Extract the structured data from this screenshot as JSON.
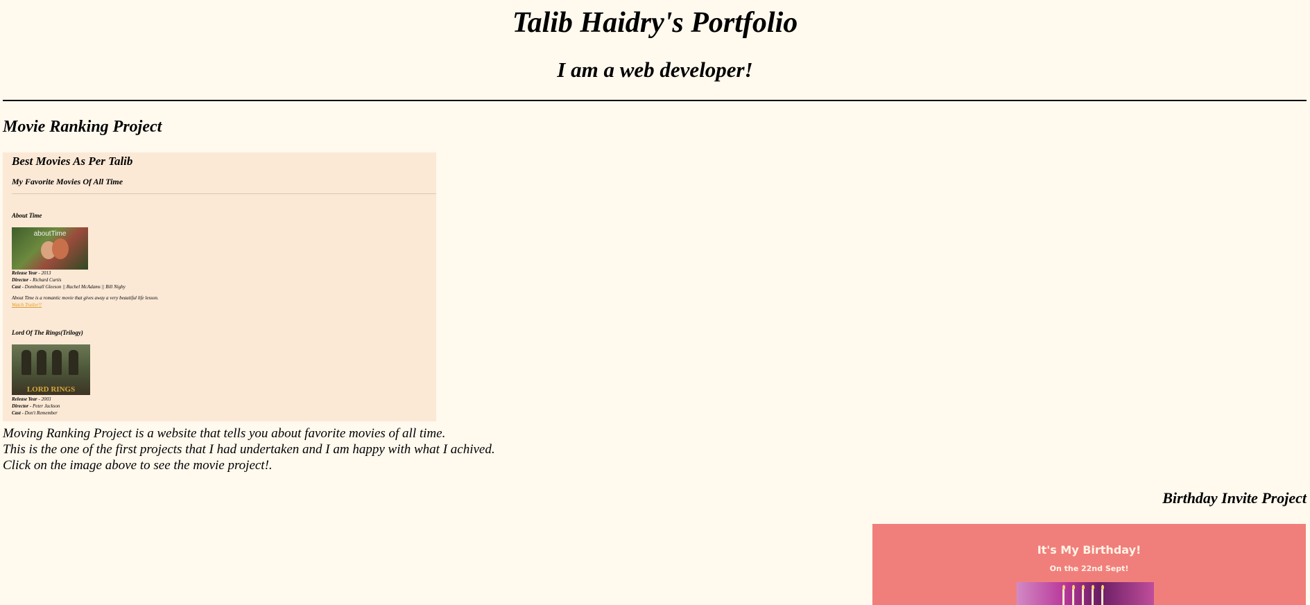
{
  "header": {
    "title": "Talib Haidry's Portfolio",
    "subtitle": "I am a web developer!"
  },
  "movie_project": {
    "heading": "Movie Ranking Project",
    "preview": {
      "title": "Best Movies As Per Talib",
      "subtitle": "My Favorite Movies Of All Time",
      "movies": [
        {
          "name": "About Time",
          "poster_text": "aboutTime",
          "release_label": "Release Year",
          "release_value": " - 2013",
          "director_label": "Director",
          "director_value": " - Richard Curtis",
          "cast_label": "Cast",
          "cast_value": " - Domhnall Gleeson || Rachel McAdams || Bill Nighy",
          "description": "About Time is a romantic movie that gives away a very beautiful life lesson.",
          "link": "Watch Trailer!!"
        },
        {
          "name": "Lord Of The Rings(Trilogy)",
          "poster_text": "LORD RINGS",
          "release_label": "Release Year",
          "release_value": " - 2003",
          "director_label": "Director",
          "director_value": " - Peter Jackson",
          "cast_label": "Cast",
          "cast_value": " - Don't Remember"
        }
      ]
    },
    "description_lines": [
      "Moving Ranking Project is a website that tells you about favorite movies of all time.",
      "This is the one of the first projects that I had undertaken and I am happy with what I achived.",
      "Click on the image above to see the movie project!."
    ]
  },
  "birthday_project": {
    "heading": "Birthday Invite Project",
    "preview": {
      "title": "It's My Birthday!",
      "subtitle": "On the 22nd Sept!"
    }
  },
  "colors": {
    "page_background": "#fff9ee",
    "movie_preview_background": "#fbe9d6",
    "birthday_preview_background": "#f07f7c",
    "link_color": "#e09a22"
  }
}
